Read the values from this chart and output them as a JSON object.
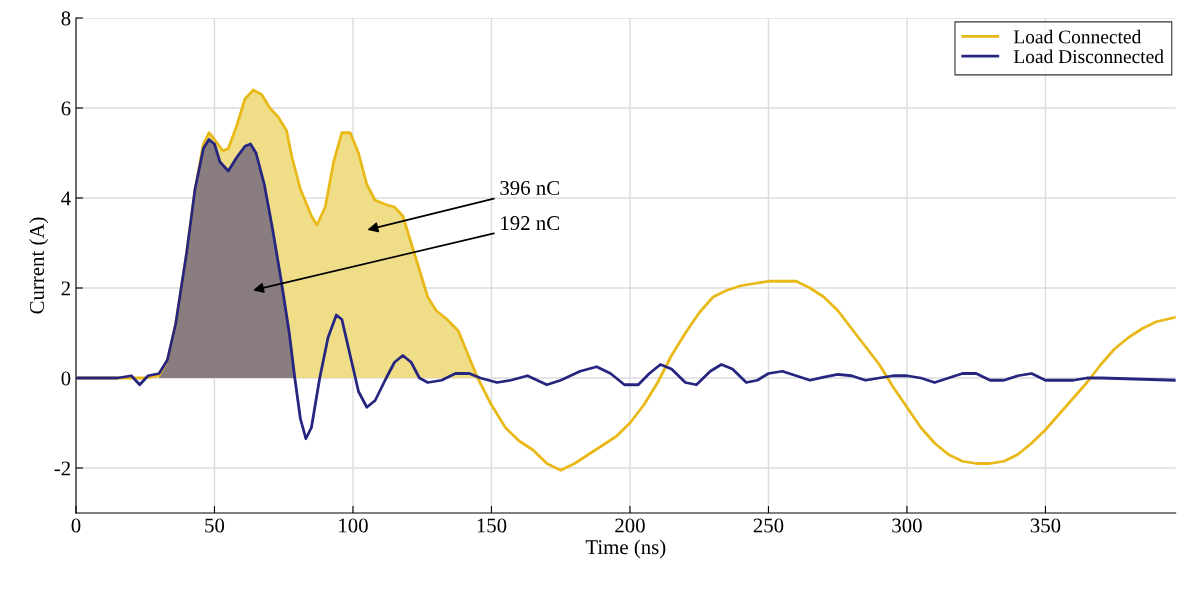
{
  "chart_data": {
    "type": "line",
    "xlabel": "Time (ns)",
    "ylabel": "Current (A)",
    "xlim": [
      0,
      397
    ],
    "xticks": [
      0,
      50,
      100,
      150,
      200,
      250,
      300,
      350
    ],
    "ylim": [
      -3,
      8
    ],
    "yticks": [
      -2,
      0,
      2,
      4,
      6,
      8
    ],
    "grid": true,
    "legend": "top right",
    "series": [
      {
        "type": "area",
        "color": "#f0dd88",
        "x": [
          30,
          33,
          36,
          40,
          43,
          46,
          48,
          50,
          53,
          55,
          58,
          61,
          64,
          67,
          70,
          73,
          76,
          78,
          81,
          85,
          87,
          90,
          93,
          96,
          99,
          102,
          105,
          108,
          112,
          115,
          118,
          121,
          124,
          127,
          130,
          134,
          138,
          141,
          145
        ],
        "values": [
          0.05,
          0.4,
          1.2,
          2.8,
          4.2,
          5.2,
          5.45,
          5.3,
          5.05,
          5.1,
          5.6,
          6.2,
          6.4,
          6.3,
          6.0,
          5.8,
          5.5,
          4.9,
          4.2,
          3.6,
          3.4,
          3.8,
          4.8,
          5.45,
          5.45,
          5.0,
          4.3,
          3.95,
          3.85,
          3.8,
          3.6,
          3.0,
          2.4,
          1.8,
          1.5,
          1.3,
          1.05,
          0.6,
          0.0
        ]
      },
      {
        "type": "area",
        "color": "#8a7d80",
        "x": [
          30,
          33,
          36,
          40,
          43,
          46,
          48,
          50,
          52,
          55,
          58,
          61,
          63,
          65,
          68,
          71,
          74,
          77,
          79
        ],
        "values": [
          0.1,
          0.4,
          1.2,
          2.8,
          4.2,
          5.1,
          5.3,
          5.2,
          4.8,
          4.6,
          4.9,
          5.15,
          5.2,
          5.0,
          4.3,
          3.3,
          2.2,
          1.0,
          0.0
        ]
      },
      {
        "name": "Load Connected",
        "color": "#e8b918",
        "x": [
          0,
          10,
          20,
          25,
          30,
          33,
          36,
          40,
          43,
          46,
          48,
          50,
          53,
          55,
          58,
          61,
          64,
          67,
          70,
          73,
          76,
          78,
          81,
          85,
          87,
          90,
          93,
          96,
          99,
          102,
          105,
          108,
          112,
          115,
          118,
          121,
          124,
          127,
          130,
          134,
          138,
          141,
          145,
          150,
          155,
          160,
          165,
          170,
          175,
          180,
          185,
          190,
          195,
          200,
          205,
          210,
          215,
          220,
          225,
          230,
          235,
          240,
          245,
          250,
          255,
          260,
          265,
          270,
          275,
          280,
          285,
          290,
          295,
          300,
          305,
          310,
          315,
          320,
          325,
          330,
          335,
          340,
          345,
          350,
          355,
          360,
          365,
          370,
          375,
          380,
          385,
          390,
          397
        ],
        "values": [
          0,
          0,
          0,
          0,
          0.05,
          0.4,
          1.2,
          2.8,
          4.2,
          5.2,
          5.45,
          5.3,
          5.05,
          5.1,
          5.6,
          6.2,
          6.4,
          6.3,
          6.0,
          5.8,
          5.5,
          4.9,
          4.2,
          3.6,
          3.4,
          3.8,
          4.8,
          5.45,
          5.45,
          5.0,
          4.3,
          3.95,
          3.85,
          3.8,
          3.6,
          3.0,
          2.4,
          1.8,
          1.5,
          1.3,
          1.05,
          0.6,
          0.0,
          -0.6,
          -1.1,
          -1.4,
          -1.6,
          -1.9,
          -2.05,
          -1.9,
          -1.7,
          -1.5,
          -1.3,
          -1.0,
          -0.6,
          -0.1,
          0.5,
          1.0,
          1.45,
          1.8,
          1.95,
          2.05,
          2.1,
          2.15,
          2.15,
          2.15,
          2.0,
          1.8,
          1.5,
          1.1,
          0.7,
          0.3,
          -0.2,
          -0.65,
          -1.1,
          -1.45,
          -1.7,
          -1.85,
          -1.9,
          -1.9,
          -1.85,
          -1.7,
          -1.45,
          -1.15,
          -0.8,
          -0.45,
          -0.1,
          0.3,
          0.65,
          0.9,
          1.1,
          1.25,
          1.35
        ]
      },
      {
        "name": "Load Disconnected",
        "color": "#262680",
        "x": [
          0,
          15,
          20,
          23,
          26,
          30,
          33,
          36,
          40,
          43,
          46,
          48,
          50,
          52,
          55,
          58,
          61,
          63,
          65,
          68,
          71,
          74,
          77,
          79,
          81,
          83,
          85,
          88,
          91,
          94,
          96,
          99,
          102,
          105,
          108,
          112,
          115,
          118,
          121,
          124,
          127,
          132,
          137,
          142,
          146,
          152,
          157,
          163,
          170,
          175,
          182,
          188,
          193,
          198,
          203,
          207,
          211,
          215,
          220,
          224,
          229,
          233,
          237,
          242,
          246,
          250,
          255,
          260,
          265,
          270,
          275,
          280,
          285,
          290,
          295,
          300,
          305,
          310,
          315,
          320,
          325,
          330,
          335,
          340,
          345,
          350,
          355,
          360,
          365,
          370,
          397
        ],
        "values": [
          0,
          0,
          0.05,
          -0.15,
          0.05,
          0.1,
          0.4,
          1.2,
          2.8,
          4.2,
          5.1,
          5.3,
          5.2,
          4.8,
          4.6,
          4.9,
          5.15,
          5.2,
          5.0,
          4.3,
          3.3,
          2.2,
          1.0,
          0,
          -0.9,
          -1.35,
          -1.1,
          0,
          0.9,
          1.4,
          1.3,
          0.5,
          -0.3,
          -0.65,
          -0.5,
          0,
          0.35,
          0.5,
          0.35,
          0,
          -0.1,
          -0.05,
          0.1,
          0.1,
          0.0,
          -0.1,
          -0.05,
          0.05,
          -0.15,
          -0.05,
          0.15,
          0.25,
          0.1,
          -0.15,
          -0.15,
          0.1,
          0.3,
          0.2,
          -0.1,
          -0.15,
          0.15,
          0.3,
          0.2,
          -0.1,
          -0.05,
          0.1,
          0.15,
          0.05,
          -0.05,
          0.02,
          0.08,
          0.05,
          -0.05,
          0.0,
          0.05,
          0.05,
          0.0,
          -0.1,
          0.0,
          0.1,
          0.1,
          -0.05,
          -0.05,
          0.05,
          0.1,
          -0.05,
          -0.05,
          -0.05,
          0.0,
          0.0,
          -0.05
        ]
      }
    ],
    "annotations": [
      "396 nC",
      "192 nC"
    ]
  }
}
